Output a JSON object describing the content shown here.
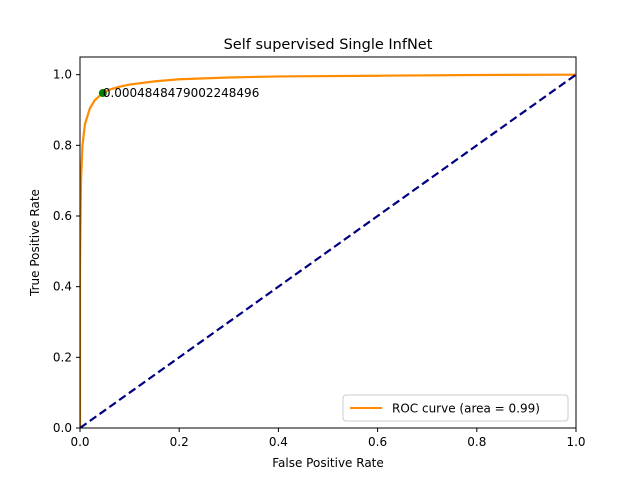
{
  "chart_data": {
    "type": "line",
    "title": "Self supervised Single InfNet",
    "xlabel": "False Positive Rate",
    "ylabel": "True Positive Rate",
    "xlim": [
      0.0,
      1.0
    ],
    "ylim": [
      0.0,
      1.05
    ],
    "xticks": [
      "0.0",
      "0.2",
      "0.4",
      "0.6",
      "0.8",
      "1.0"
    ],
    "yticks": [
      "0.0",
      "0.2",
      "0.4",
      "0.6",
      "0.8",
      "1.0"
    ],
    "grid": false,
    "legend_position": "lower-right",
    "series": [
      {
        "name": "ROC curve (area = 0.99)",
        "color": "#ff8c00",
        "style": "solid",
        "points": [
          [
            0.0,
            0.0
          ],
          [
            0.0,
            0.45
          ],
          [
            0.002,
            0.7
          ],
          [
            0.005,
            0.8
          ],
          [
            0.01,
            0.86
          ],
          [
            0.02,
            0.905
          ],
          [
            0.03,
            0.928
          ],
          [
            0.046,
            0.948
          ],
          [
            0.06,
            0.958
          ],
          [
            0.08,
            0.966
          ],
          [
            0.1,
            0.972
          ],
          [
            0.15,
            0.981
          ],
          [
            0.2,
            0.987
          ],
          [
            0.3,
            0.992
          ],
          [
            0.4,
            0.995
          ],
          [
            0.6,
            0.997
          ],
          [
            0.8,
            0.999
          ],
          [
            1.0,
            1.0
          ]
        ]
      },
      {
        "name": "",
        "color": "#000080",
        "style": "dashed",
        "points": [
          [
            0.0,
            0.0
          ],
          [
            1.0,
            1.0
          ]
        ]
      }
    ],
    "marker": {
      "x": 0.046,
      "y": 0.948,
      "color": "#008000"
    },
    "annotation": {
      "text": "0.0004848479002248496",
      "x": 0.046,
      "y": 0.948
    }
  }
}
